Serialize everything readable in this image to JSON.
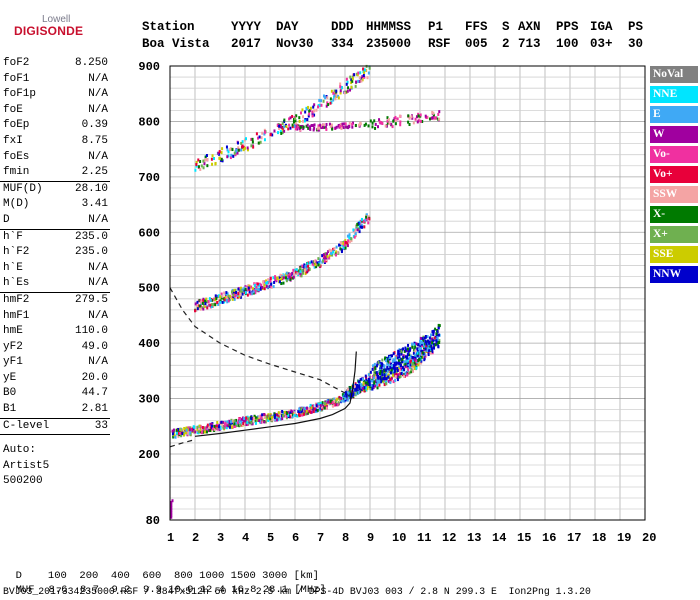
{
  "logo": {
    "top": "Lowell",
    "main": "DIGISONDE"
  },
  "header": {
    "labels": [
      "Station",
      "YYYY",
      "DAY",
      "DDD",
      "HHMMSS",
      "P1",
      "FFS",
      "S",
      "AXN",
      "PPS",
      "IGA",
      "PS"
    ],
    "values": [
      "Boa Vista",
      "2017",
      "Nov30",
      "334",
      "235000",
      "RSF",
      "005",
      "2",
      "713",
      "100",
      "03+",
      "30"
    ]
  },
  "params": {
    "group1": [
      {
        "label": "foF2",
        "value": "8.250"
      },
      {
        "label": "foF1",
        "value": "N/A"
      },
      {
        "label": "foF1p",
        "value": "N/A"
      },
      {
        "label": "foE",
        "value": "N/A"
      },
      {
        "label": "foEp",
        "value": "0.39"
      },
      {
        "label": "fxI",
        "value": "8.75"
      },
      {
        "label": "foEs",
        "value": "N/A"
      },
      {
        "label": "fmin",
        "value": "2.25"
      }
    ],
    "group2": [
      {
        "label": "MUF(D)",
        "value": "28.10"
      },
      {
        "label": "M(D)",
        "value": "3.41"
      },
      {
        "label": "D",
        "value": "N/A"
      }
    ],
    "group3": [
      {
        "label": "h`F",
        "value": "235.0"
      },
      {
        "label": "h`F2",
        "value": "235.0"
      },
      {
        "label": "h`E",
        "value": "N/A"
      },
      {
        "label": "h`Es",
        "value": "N/A"
      }
    ],
    "group4": [
      {
        "label": "hmF2",
        "value": "279.5"
      },
      {
        "label": "hmF1",
        "value": "N/A"
      },
      {
        "label": "hmE",
        "value": "110.0"
      },
      {
        "label": "yF2",
        "value": "49.0"
      },
      {
        "label": "yF1",
        "value": "N/A"
      },
      {
        "label": "yE",
        "value": "20.0"
      },
      {
        "label": "B0",
        "value": "44.7"
      },
      {
        "label": "B1",
        "value": "2.81"
      }
    ],
    "group5": [
      {
        "label": "C-level",
        "value": "33"
      }
    ],
    "auto": [
      "Auto:",
      "Artist5",
      "500200"
    ]
  },
  "legend": [
    {
      "label": "NoVal",
      "color": "#808080"
    },
    {
      "label": "NNE",
      "color": "#00e5ff"
    },
    {
      "label": "E",
      "color": "#3fa9f5"
    },
    {
      "label": "W",
      "color": "#a0009f"
    },
    {
      "label": "Vo-",
      "color": "#f030a0"
    },
    {
      "label": "Vo+",
      "color": "#e8003a"
    },
    {
      "label": "SSW",
      "color": "#f4a4a4"
    },
    {
      "label": "X-",
      "color": "#007a00"
    },
    {
      "label": "X+",
      "color": "#6fb050"
    },
    {
      "label": "SSE",
      "color": "#cccc00"
    },
    {
      "label": "NNW",
      "color": "#0000cc"
    }
  ],
  "chart_data": {
    "type": "scatter",
    "title": "",
    "xlabel": "",
    "ylabel": "",
    "xlim": [
      1,
      20
    ],
    "ylim": [
      80,
      900
    ],
    "x_ticks": [
      "1",
      "2",
      "3",
      "4",
      "5",
      "6",
      "7",
      "8",
      "9",
      "10",
      "11",
      "12",
      "13",
      "14",
      "15",
      "16",
      "17",
      "18",
      "19",
      "20"
    ],
    "y_ticks": [
      "80",
      "200",
      "300",
      "400",
      "500",
      "600",
      "700",
      "800",
      "900"
    ],
    "grid": true,
    "legend_placement": "right",
    "traces": [
      {
        "mode": "o-trace",
        "points": [
          [
            1.1,
            236
          ],
          [
            2,
            243
          ],
          [
            3,
            251
          ],
          [
            4,
            259
          ],
          [
            5,
            266
          ],
          [
            6,
            274
          ],
          [
            7,
            285
          ],
          [
            7.6,
            293
          ],
          [
            8,
            303
          ],
          [
            8.5,
            313
          ],
          [
            9,
            325
          ],
          [
            9.5,
            336
          ],
          [
            10,
            344
          ],
          [
            10.5,
            354
          ],
          [
            11,
            371
          ],
          [
            11.5,
            399
          ]
        ]
      },
      {
        "mode": "x-trace",
        "points": [
          [
            8,
            303
          ],
          [
            8.5,
            320
          ],
          [
            9,
            336
          ],
          [
            9.5,
            352
          ],
          [
            10,
            364
          ],
          [
            10.5,
            376
          ],
          [
            11,
            388
          ],
          [
            11.5,
            402
          ],
          [
            11.8,
            415
          ]
        ]
      },
      {
        "mode": "multi-hop",
        "points": [
          [
            2,
            466
          ],
          [
            3,
            479
          ],
          [
            4,
            494
          ],
          [
            5,
            508
          ],
          [
            6,
            524
          ],
          [
            7,
            547
          ],
          [
            8,
            578
          ],
          [
            8.5,
            606
          ],
          [
            9,
            629
          ]
        ]
      },
      {
        "mode": "third-hop",
        "points": [
          [
            2,
            720
          ],
          [
            3,
            738
          ],
          [
            4,
            756
          ],
          [
            5,
            778
          ],
          [
            6,
            802
          ],
          [
            7,
            829
          ],
          [
            8,
            862
          ],
          [
            9,
            893
          ]
        ]
      },
      {
        "mode": "flat-echo",
        "points": [
          [
            6,
            788
          ],
          [
            7,
            789
          ],
          [
            8,
            792
          ],
          [
            9,
            795
          ],
          [
            10,
            800
          ],
          [
            11,
            805
          ],
          [
            11.8,
            812
          ]
        ]
      },
      {
        "mode": "low-es",
        "points": [
          [
            1.05,
            85
          ],
          [
            1.05,
            88
          ],
          [
            1.05,
            91
          ],
          [
            1.05,
            94
          ],
          [
            1.05,
            97
          ],
          [
            1.05,
            100
          ],
          [
            1.05,
            103
          ],
          [
            1.05,
            106
          ],
          [
            1.05,
            109
          ],
          [
            1.05,
            112
          ],
          [
            1.1,
            115
          ]
        ]
      }
    ],
    "profile_curves": {
      "dashed_ordinary": [
        [
          1,
          500
        ],
        [
          1.5,
          460
        ],
        [
          2,
          430
        ],
        [
          3,
          400
        ],
        [
          4,
          378
        ],
        [
          5,
          362
        ],
        [
          6,
          348
        ],
        [
          7,
          334
        ],
        [
          7.5,
          322
        ],
        [
          8,
          310
        ]
      ],
      "dashed_base": [
        [
          1,
          213
        ],
        [
          1.5,
          220
        ],
        [
          2,
          226
        ]
      ],
      "solid_true_height": [
        [
          2,
          232
        ],
        [
          3,
          237
        ],
        [
          4,
          243
        ],
        [
          5,
          249
        ],
        [
          6,
          255
        ],
        [
          7,
          264
        ],
        [
          7.5,
          271
        ],
        [
          8,
          282
        ],
        [
          8.2,
          292
        ],
        [
          8.3,
          315
        ],
        [
          8.4,
          350
        ],
        [
          8.45,
          385
        ]
      ]
    }
  },
  "footer": {
    "row1_label": "D",
    "row1_values": "100  200  400  600  800 1000 1500 3000 [km]",
    "row2_label": "MUF",
    "row2_values": "8.6  8.7  9.2  9.9 10.9 12.4 16.8 28.1 [MHz]",
    "file_line": "BVJ03_2017334235000.RSF / 384fx512h 50 kHz 2.5 km / DPS-4D BVJ03 003 / 2.8 N 299.3 E  Ion2Png 1.3.20"
  }
}
